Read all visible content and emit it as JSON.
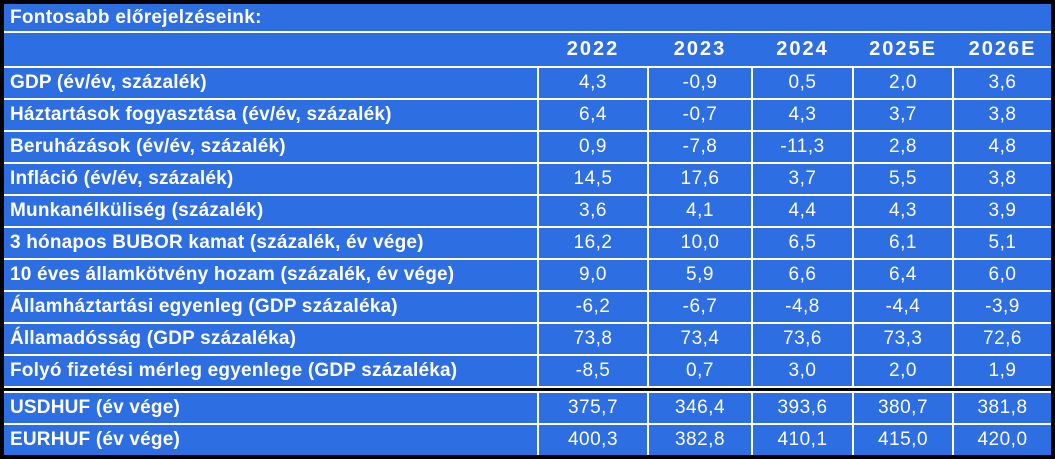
{
  "chart_data": {
    "type": "table",
    "title": "Fontosabb előrejelzéseink:",
    "columns": [
      "2022",
      "2023",
      "2024",
      "2025E",
      "2026E"
    ],
    "rows": [
      {
        "label": "GDP (év/év, százalék)",
        "values": [
          "4,3",
          "-0,9",
          "0,5",
          "2,0",
          "3,6"
        ]
      },
      {
        "label": "Háztartások fogyasztása (év/év, százalék)",
        "values": [
          "6,4",
          "-0,7",
          "4,3",
          "3,7",
          "3,8"
        ]
      },
      {
        "label": "Beruházások (év/év, százalék)",
        "values": [
          "0,9",
          "-7,8",
          "-11,3",
          "2,8",
          "4,8"
        ]
      },
      {
        "label": "Infláció (év/év, százalék)",
        "values": [
          "14,5",
          "17,6",
          "3,7",
          "5,5",
          "3,8"
        ]
      },
      {
        "label": "Munkanélküliség (százalék)",
        "values": [
          "3,6",
          "4,1",
          "4,4",
          "4,3",
          "3,9"
        ]
      },
      {
        "label": "3 hónapos BUBOR kamat (százalék, év vége)",
        "values": [
          "16,2",
          "10,0",
          "6,5",
          "6,1",
          "5,1"
        ]
      },
      {
        "label": "10 éves államkötvény hozam (százalék, év vége)",
        "values": [
          "9,0",
          "5,9",
          "6,6",
          "6,4",
          "6,0"
        ]
      },
      {
        "label": "Államháztartási egyenleg (GDP százaléka)",
        "values": [
          "-6,2",
          "-6,7",
          "-4,8",
          "-4,4",
          "-3,9"
        ]
      },
      {
        "label": "Államadósság (GDP százaléka)",
        "values": [
          "73,8",
          "73,4",
          "73,6",
          "73,3",
          "72,6"
        ]
      },
      {
        "label": "Folyó fizetési mérleg egyenlege (GDP százaléka)",
        "values": [
          "-8,5",
          "0,7",
          "3,0",
          "2,0",
          "1,9"
        ]
      },
      {
        "label": "USDHUF (év vége)",
        "values": [
          "375,7",
          "346,4",
          "393,6",
          "380,7",
          "381,8"
        ]
      },
      {
        "label": "EURHUF (év vége)",
        "values": [
          "400,3",
          "382,8",
          "410,1",
          "415,0",
          "420,0"
        ]
      }
    ],
    "section_break_before_row": 10,
    "layout": {
      "grid": "on",
      "legend": "none"
    }
  },
  "colors": {
    "cell_background": "#2d6ee2",
    "gridline": "#ffffff",
    "outer_border": "#000000",
    "section_divider": "#000000",
    "text": "#ffffff"
  }
}
